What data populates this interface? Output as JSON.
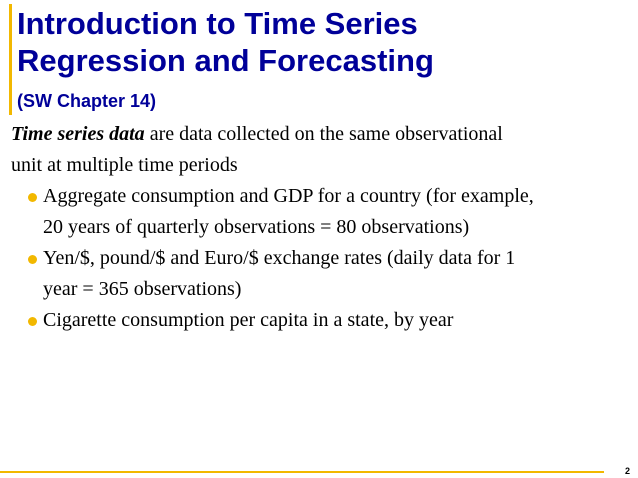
{
  "title_lines": [
    "Introduction to Time Series",
    "Regression and Forecasting"
  ],
  "subtitle": "(SW Chapter 14)",
  "intro": {
    "term": "Time series data",
    "line1_rest": " are data collected on the same observational",
    "line2": "unit at multiple time periods"
  },
  "bullets": [
    {
      "line1": "Aggregate consumption and GDP for a country (for example,",
      "line2": "20 years of quarterly observations = 80 observations)"
    },
    {
      "line1": "Yen/$, pound/$ and Euro/$ exchange rates (daily data for 1",
      "line2": "year = 365 observations)"
    },
    {
      "line1": "Cigarette consumption per capita in a state, by year",
      "line2": ""
    }
  ],
  "page_number": "2",
  "colors": {
    "title": "#000099",
    "accent": "#f2b800",
    "text": "#000000"
  }
}
